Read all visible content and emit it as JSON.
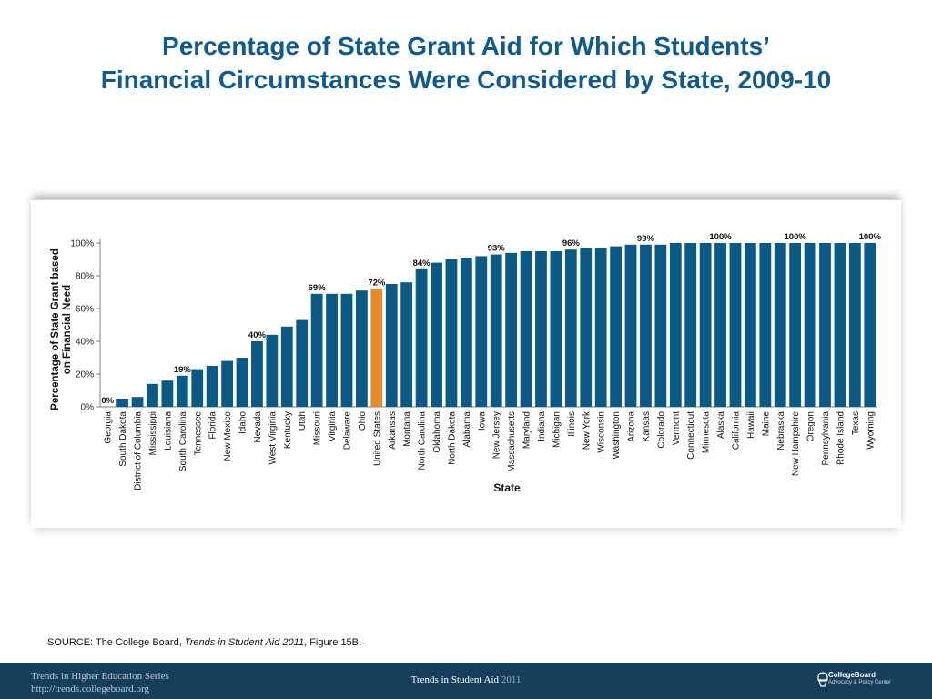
{
  "slide": {
    "title_line1": "Percentage of State Grant Aid for Which Students’",
    "title_line2": "Financial Circumstances Were Considered by State, 2009-10"
  },
  "source": {
    "prefix": "SOURCE: The College Board, ",
    "italic": "Trends in Student Aid 2011",
    "suffix": ", Figure 15B."
  },
  "footer": {
    "series_line1": "Trends in Higher Education Series",
    "series_line2": "http://trends.collegeboard.org",
    "center_title": "Trends in Student Aid",
    "center_year": "2011",
    "logo_line1": "CollegeBoard",
    "logo_line2": "Advocacy & Policy Center",
    "logo_icon": "collegeboard-acorn-icon"
  },
  "colors": {
    "title": "#0f5a8e",
    "bar": "#0b5a86",
    "highlight_bar": "#e8892a",
    "footer_bg": "#163f5c"
  },
  "chart_data": {
    "type": "bar",
    "title": "",
    "xlabel": "State",
    "ylabel_line1": "Percentage of State Grant based",
    "ylabel_line2": "on Financial Need",
    "ylim": [
      0,
      100
    ],
    "yticks": [
      "0%",
      "20%",
      "40%",
      "60%",
      "80%",
      "100%"
    ],
    "grid": false,
    "highlight_category": "United States",
    "categories": [
      "Georgia",
      "South Dakota",
      "District of Columbia",
      "Mississippi",
      "Louisiana",
      "South Carolina",
      "Tennessee",
      "Florida",
      "New Mexico",
      "Idaho",
      "Nevada",
      "West Virginia",
      "Kentucky",
      "Utah",
      "Missouri",
      "Virginia",
      "Delaware",
      "Ohio",
      "United States",
      "Arkansas",
      "Montana",
      "North Carolina",
      "Oklahoma",
      "North Dakota",
      "Alabama",
      "Iowa",
      "New Jersey",
      "Massachusetts",
      "Maryland",
      "Indiana",
      "Michigan",
      "Illinois",
      "New York",
      "Wisconsin",
      "Washington",
      "Arizona",
      "Kansas",
      "Colorado",
      "Vermont",
      "Connecticut",
      "Minnesota",
      "Alaska",
      "California",
      "Hawaii",
      "Maine",
      "Nebraska",
      "New Hampshire",
      "Oregon",
      "Pennsylvania",
      "Rhode Island",
      "Texas",
      "Wyoming"
    ],
    "values": [
      0,
      5,
      6,
      14,
      16,
      19,
      23,
      25,
      28,
      30,
      40,
      44,
      49,
      53,
      69,
      69,
      69,
      71,
      72,
      75,
      76,
      84,
      88,
      90,
      91,
      92,
      93,
      94,
      95,
      95,
      95,
      96,
      97,
      97,
      98,
      99,
      99,
      99,
      100,
      100,
      100,
      100,
      100,
      100,
      100,
      100,
      100,
      100,
      100,
      100,
      100,
      100
    ],
    "data_labels": [
      {
        "category": "Georgia",
        "label": "0%"
      },
      {
        "category": "South Carolina",
        "label": "19%"
      },
      {
        "category": "Nevada",
        "label": "40%"
      },
      {
        "category": "Missouri",
        "label": "69%"
      },
      {
        "category": "United States",
        "label": "72%"
      },
      {
        "category": "North Carolina",
        "label": "84%"
      },
      {
        "category": "New Jersey",
        "label": "93%"
      },
      {
        "category": "Illinois",
        "label": "96%"
      },
      {
        "category": "Kansas",
        "label": "99%"
      },
      {
        "category": "Alaska",
        "label": "100%"
      },
      {
        "category": "New Hampshire",
        "label": "100%"
      },
      {
        "category": "Wyoming",
        "label": "100%"
      }
    ]
  }
}
